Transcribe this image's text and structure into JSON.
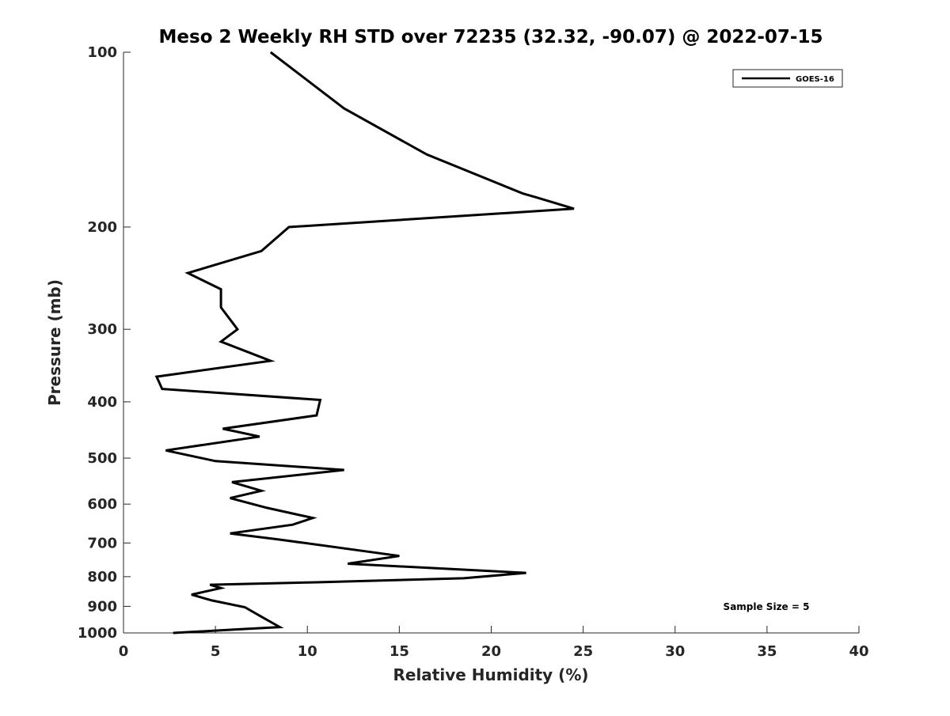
{
  "chart_data": {
    "type": "line",
    "title": "Meso 2 Weekly RH STD over 72235 (32.32, -90.07) @ 2022-07-15",
    "xlabel": "Relative Humidity (%)",
    "ylabel": "Pressure (mb)",
    "xlim": [
      0,
      40
    ],
    "ylim": [
      1000,
      100
    ],
    "yscale": "log",
    "xticks": [
      0,
      5,
      10,
      15,
      20,
      25,
      30,
      35,
      40
    ],
    "yticks": [
      100,
      200,
      300,
      400,
      500,
      600,
      700,
      800,
      900,
      1000
    ],
    "legend": {
      "position": "top-right",
      "entries": [
        "GOES-16"
      ]
    },
    "annotation": "Sample Size = 5",
    "series": [
      {
        "name": "GOES-16",
        "points": [
          [
            8.0,
            100
          ],
          [
            12.0,
            125
          ],
          [
            16.5,
            150
          ],
          [
            21.7,
            175
          ],
          [
            22.5,
            178
          ],
          [
            24.5,
            186
          ],
          [
            9.0,
            200
          ],
          [
            7.5,
            220
          ],
          [
            3.5,
            240
          ],
          [
            5.3,
            256
          ],
          [
            5.3,
            275
          ],
          [
            6.2,
            300
          ],
          [
            5.3,
            315
          ],
          [
            8.0,
            340
          ],
          [
            1.8,
            362
          ],
          [
            2.1,
            380
          ],
          [
            10.7,
            397
          ],
          [
            10.5,
            422
          ],
          [
            5.4,
            445
          ],
          [
            7.4,
            459
          ],
          [
            2.3,
            485
          ],
          [
            5.0,
            506
          ],
          [
            12.0,
            524
          ],
          [
            5.9,
            550
          ],
          [
            7.5,
            569
          ],
          [
            5.8,
            586
          ],
          [
            7.8,
            609
          ],
          [
            10.3,
            634
          ],
          [
            9.2,
            651
          ],
          [
            5.8,
            674
          ],
          [
            8.4,
            690
          ],
          [
            15.0,
            737
          ],
          [
            12.2,
            760
          ],
          [
            21.9,
            788
          ],
          [
            18.5,
            805
          ],
          [
            10.5,
            818
          ],
          [
            4.7,
            826
          ],
          [
            5.3,
            837
          ],
          [
            3.7,
            859
          ],
          [
            4.8,
            879
          ],
          [
            6.6,
            903
          ],
          [
            7.4,
            934
          ],
          [
            8.5,
            977
          ],
          [
            6.0,
            987
          ],
          [
            2.7,
            1000
          ]
        ]
      }
    ]
  }
}
